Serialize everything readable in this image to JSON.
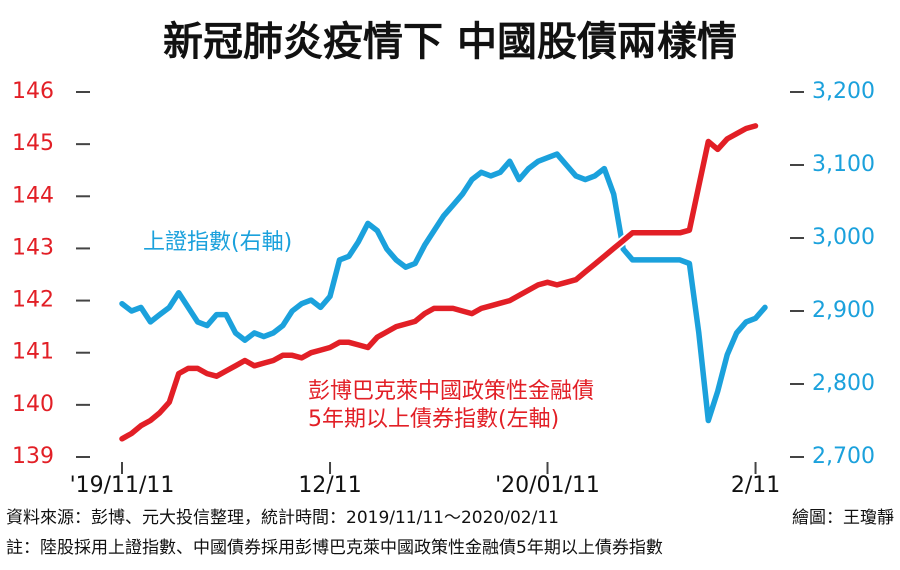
{
  "chart_data": {
    "type": "line",
    "title": "新冠肺炎疫情下 中國股債兩樣情",
    "categories": [
      "'19/11/11",
      null,
      null,
      null,
      null,
      null,
      null,
      null,
      null,
      null,
      null,
      null,
      null,
      null,
      null,
      null,
      null,
      null,
      null,
      null,
      null,
      null,
      "12/11",
      null,
      null,
      null,
      null,
      null,
      null,
      null,
      null,
      null,
      null,
      null,
      null,
      null,
      null,
      null,
      null,
      null,
      null,
      null,
      null,
      null,
      null,
      "'20/01/11",
      null,
      null,
      null,
      null,
      null,
      null,
      null,
      null,
      null,
      null,
      null,
      null,
      null,
      null,
      null,
      null,
      null,
      null,
      null,
      null,
      null,
      "2/11",
      null
    ],
    "series": [
      {
        "name": "彭博巴克萊中國政策性金融債5年期以上債券指數(左軸)",
        "color": "#e21f26",
        "axis": "y",
        "values": [
          139.35,
          139.45,
          139.6,
          139.7,
          139.85,
          140.05,
          140.6,
          140.7,
          140.7,
          140.6,
          140.55,
          140.65,
          140.75,
          140.85,
          140.75,
          140.8,
          140.85,
          140.95,
          140.95,
          140.9,
          141.0,
          141.05,
          141.1,
          141.2,
          141.2,
          141.15,
          141.1,
          141.3,
          141.4,
          141.5,
          141.55,
          141.6,
          141.75,
          141.85,
          141.85,
          141.85,
          141.8,
          141.75,
          141.85,
          141.9,
          141.95,
          142.0,
          142.1,
          142.2,
          142.3,
          142.35,
          142.3,
          142.35,
          142.4,
          142.55,
          142.7,
          142.85,
          143.0,
          143.15,
          143.3,
          143.3,
          143.3,
          143.3,
          143.3,
          143.3,
          143.35,
          144.2,
          145.05,
          144.9,
          145.1,
          145.2,
          145.3,
          145.35,
          null
        ]
      },
      {
        "name": "上證指數(右軸)",
        "color": "#1ba1dc",
        "axis": "y2",
        "values": [
          2910,
          2900,
          2905,
          2885,
          2895,
          2905,
          2925,
          2905,
          2885,
          2880,
          2895,
          2895,
          2870,
          2860,
          2870,
          2865,
          2870,
          2880,
          2900,
          2910,
          2915,
          2905,
          2920,
          2970,
          2975,
          2995,
          3020,
          3010,
          2985,
          2970,
          2960,
          2965,
          2990,
          3010,
          3030,
          3045,
          3060,
          3080,
          3090,
          3085,
          3090,
          3105,
          3080,
          3095,
          3105,
          3110,
          3115,
          3100,
          3085,
          3080,
          3085,
          3095,
          3060,
          2985,
          2970,
          2970,
          2970,
          2970,
          2970,
          2970,
          2965,
          2870,
          2750,
          2790,
          2840,
          2870,
          2885,
          2890,
          2905
        ]
      }
    ],
    "ylim": [
      139,
      146
    ],
    "yticks": [
      139,
      140,
      141,
      142,
      143,
      144,
      145,
      146
    ],
    "y2lim": [
      2700,
      3200
    ],
    "y2ticks": [
      {
        "value": 2700,
        "label": "2,700"
      },
      {
        "value": 2800,
        "label": "2,800"
      },
      {
        "value": 2900,
        "label": "2,900"
      },
      {
        "value": 3000,
        "label": "3,000"
      },
      {
        "value": 3100,
        "label": "3,100"
      },
      {
        "value": 3200,
        "label": "3,200"
      }
    ],
    "annotations": [
      "上證指數(右軸)",
      "彭博巴克萊中國政策性金融債",
      "5年期以上債券指數(左軸)"
    ],
    "source": "資料來源：彭博、元大投信整理，統計時間：2019/11/11～2020/02/11",
    "credit": "繪圖：王瓊靜",
    "note": "註：陸股採用上證指數、中國債券採用彭博巴克萊中國政策性金融債5年期以上債券指數"
  }
}
